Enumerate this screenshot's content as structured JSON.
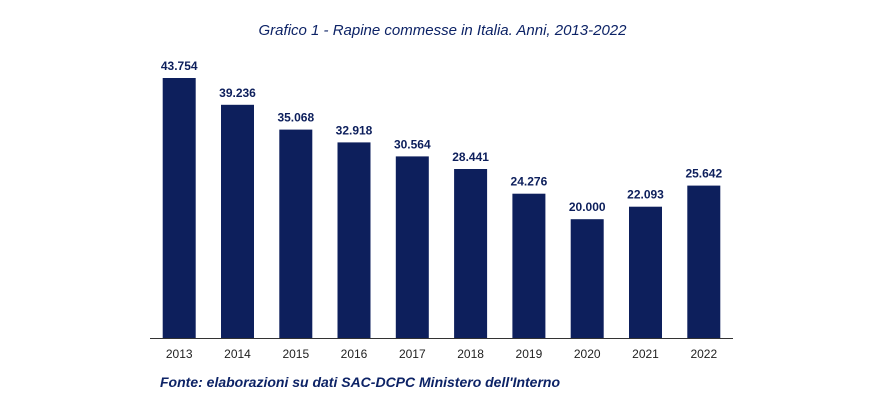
{
  "chart_data": {
    "type": "bar",
    "title": "Grafico 1 - Rapine commesse in Italia. Anni, 2013-2022",
    "source": "Fonte: elaborazioni su dati SAC-DCPC Ministero dell'Interno",
    "categories": [
      "2013",
      "2014",
      "2015",
      "2016",
      "2017",
      "2018",
      "2019",
      "2020",
      "2021",
      "2022"
    ],
    "values": [
      43754,
      39236,
      35068,
      32918,
      30564,
      28441,
      24276,
      20000,
      22093,
      25642
    ],
    "value_labels": [
      "43.754",
      "39.236",
      "35.068",
      "32.918",
      "30.564",
      "28.441",
      "24.276",
      "20.000",
      "22.093",
      "25.642"
    ],
    "ylim": [
      0,
      45000
    ],
    "grid": false,
    "legend": "none",
    "bar_color": "#0d1f5c"
  }
}
